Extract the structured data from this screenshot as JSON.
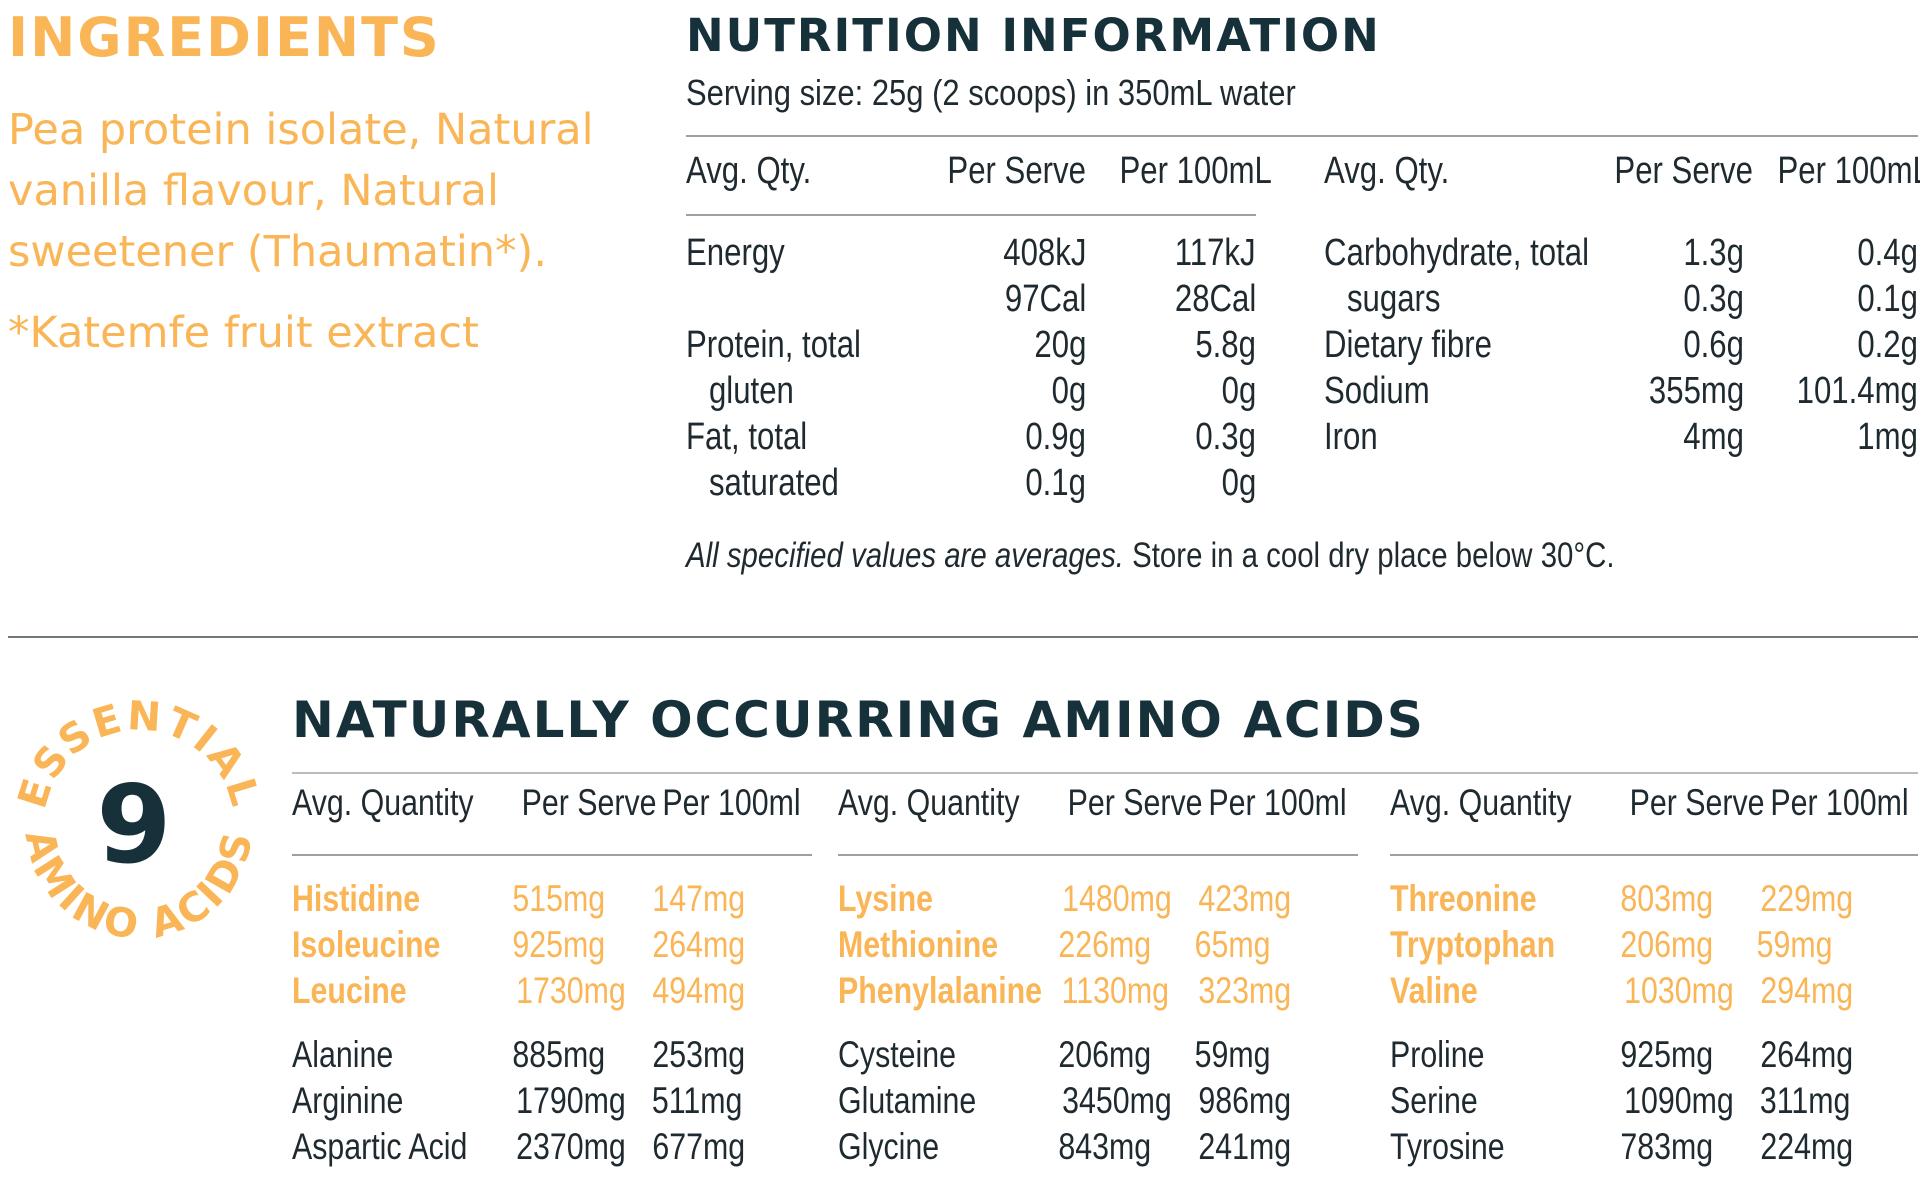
{
  "ingredients": {
    "title": "INGREDIENTS",
    "text": "Pea protein isolate, Natural vanilla flavour, Natural sweetener (Thaumatin*).",
    "footnote": "*Katemfe fruit extract"
  },
  "nutrition": {
    "title": "NUTRITION INFORMATION",
    "serving": "Serving size: 25g (2 scoops) in 350mL water",
    "headers": {
      "qty": "Avg. Qty.",
      "serve": "Per Serve",
      "per100": "Per 100mL"
    },
    "left_rows": [
      {
        "name": "Energy",
        "serve": "408kJ",
        "per100": "117kJ",
        "sub": false
      },
      {
        "name": "",
        "serve": "97Cal",
        "per100": "28Cal",
        "sub": false
      },
      {
        "name": "Protein, total",
        "serve": "20g",
        "per100": "5.8g",
        "sub": false
      },
      {
        "name": "gluten",
        "serve": "0g",
        "per100": "0g",
        "sub": true
      },
      {
        "name": "Fat, total",
        "serve": "0.9g",
        "per100": "0.3g",
        "sub": false
      },
      {
        "name": "saturated",
        "serve": "0.1g",
        "per100": "0g",
        "sub": true
      }
    ],
    "right_rows": [
      {
        "name": "Carbohydrate, total",
        "serve": "1.3g",
        "per100": "0.4g",
        "sub": false
      },
      {
        "name": "sugars",
        "serve": "0.3g",
        "per100": "0.1g",
        "sub": true
      },
      {
        "name": "Dietary fibre",
        "serve": "0.6g",
        "per100": "0.2g",
        "sub": false
      },
      {
        "name": "Sodium",
        "serve": "355mg",
        "per100": "101.4mg",
        "sub": false
      },
      {
        "name": "Iron",
        "serve": "4mg",
        "per100": "1mg",
        "sub": false
      }
    ],
    "note_italic": "All specified values are averages.",
    "note_plain": " Store in a cool dry place below 30°C."
  },
  "badge": {
    "number": "9",
    "top_text": "ESSENTIAL",
    "bottom_text": "AMINO ACIDS"
  },
  "amino": {
    "title": "NATURALLY OCCURRING AMINO ACIDS",
    "headers": {
      "qty": "Avg. Quantity",
      "serve": "Per Serve",
      "per100": "Per 100ml"
    },
    "groups": [
      {
        "essential": [
          {
            "name": "Histidine",
            "serve": "515mg",
            "per100": "147mg"
          },
          {
            "name": "Isoleucine",
            "serve": "925mg",
            "per100": "264mg"
          },
          {
            "name": "Leucine",
            "serve": "1730mg",
            "per100": "494mg"
          }
        ],
        "other": [
          {
            "name": "Alanine",
            "serve": "885mg",
            "per100": "253mg"
          },
          {
            "name": "Arginine",
            "serve": "1790mg",
            "per100": "511mg"
          },
          {
            "name": "Aspartic Acid",
            "serve": "2370mg",
            "per100": "677mg"
          }
        ]
      },
      {
        "essential": [
          {
            "name": "Lysine",
            "serve": "1480mg",
            "per100": "423mg"
          },
          {
            "name": "Methionine",
            "serve": "226mg",
            "per100": "65mg"
          },
          {
            "name": "Phenylalanine",
            "serve": "1130mg",
            "per100": "323mg"
          }
        ],
        "other": [
          {
            "name": "Cysteine",
            "serve": "206mg",
            "per100": "59mg"
          },
          {
            "name": "Glutamine",
            "serve": "3450mg",
            "per100": "986mg"
          },
          {
            "name": "Glycine",
            "serve": "843mg",
            "per100": "241mg"
          }
        ]
      },
      {
        "essential": [
          {
            "name": "Threonine",
            "serve": "803mg",
            "per100": "229mg"
          },
          {
            "name": "Tryptophan",
            "serve": "206mg",
            "per100": "59mg"
          },
          {
            "name": "Valine",
            "serve": "1030mg",
            "per100": "294mg"
          }
        ],
        "other": [
          {
            "name": "Proline",
            "serve": "925mg",
            "per100": "264mg"
          },
          {
            "name": "Serine",
            "serve": "1090mg",
            "per100": "311mg"
          },
          {
            "name": "Tyrosine",
            "serve": "783mg",
            "per100": "224mg"
          }
        ]
      }
    ]
  },
  "colors": {
    "accent": "#f9b556",
    "heading": "#16313a",
    "text": "#1f2a30",
    "rule": "#9aa0a3"
  }
}
